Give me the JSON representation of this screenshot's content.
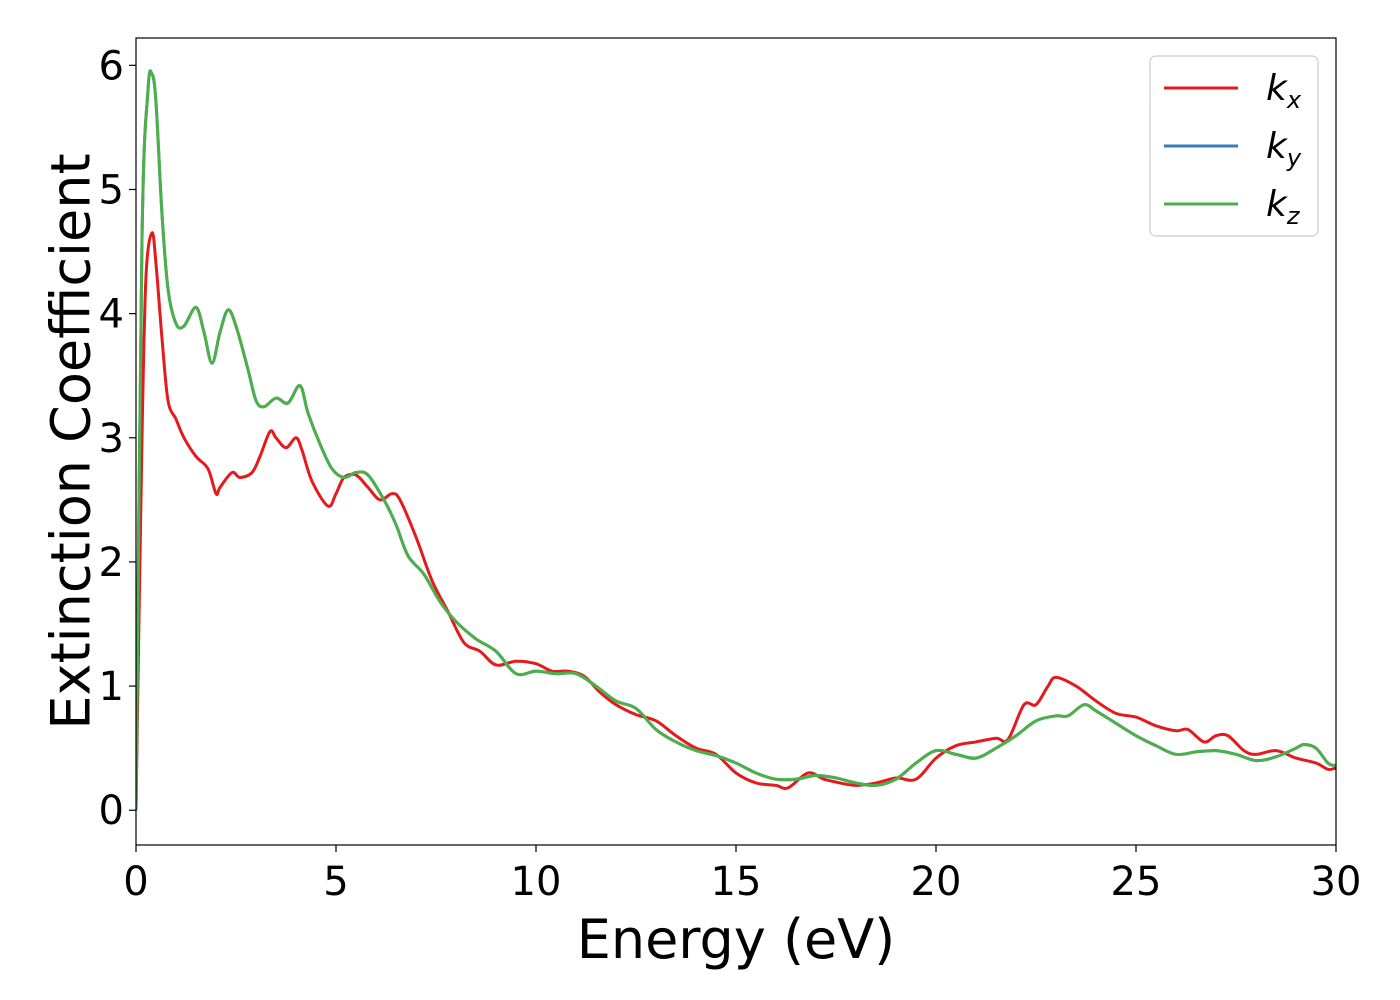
{
  "chart_data": {
    "type": "line",
    "title": "",
    "xlabel": "Energy (eV)",
    "ylabel": "Extinction Coefficient",
    "xlim": [
      0,
      30
    ],
    "ylim": [
      -0.28,
      6.22
    ],
    "xticks": [
      0,
      5,
      10,
      15,
      20,
      25,
      30
    ],
    "yticks": [
      0,
      1,
      2,
      3,
      4,
      5,
      6
    ],
    "grid": false,
    "legend_position": "top-right",
    "series": [
      {
        "name": "kx",
        "symbol": "k",
        "subscript": "x",
        "color": "#e41a1c",
        "x": [
          0,
          0.15,
          0.25,
          0.4,
          0.5,
          0.65,
          0.8,
          1.0,
          1.2,
          1.5,
          1.8,
          2.0,
          2.1,
          2.4,
          2.6,
          2.9,
          3.1,
          3.35,
          3.5,
          3.75,
          4.0,
          4.15,
          4.4,
          4.8,
          5.0,
          5.2,
          5.5,
          5.8,
          6.1,
          6.4,
          6.6,
          7.0,
          7.4,
          7.8,
          8.2,
          8.6,
          9.0,
          9.5,
          10.0,
          10.4,
          10.8,
          11.2,
          11.6,
          12.0,
          12.5,
          13.0,
          13.5,
          14.0,
          14.5,
          15.0,
          15.5,
          16.0,
          16.3,
          16.8,
          17.2,
          17.6,
          18.0,
          18.5,
          19.0,
          19.5,
          20.0,
          20.5,
          21.0,
          21.5,
          21.8,
          22.2,
          22.5,
          22.8,
          23.0,
          23.5,
          24.0,
          24.5,
          25.0,
          25.5,
          26.0,
          26.3,
          26.7,
          27.0,
          27.3,
          27.7,
          28.0,
          28.5,
          29.0,
          29.5,
          29.8,
          30.0
        ],
        "y": [
          0,
          3.0,
          4.3,
          4.65,
          4.4,
          3.8,
          3.3,
          3.15,
          3.0,
          2.85,
          2.75,
          2.55,
          2.6,
          2.72,
          2.68,
          2.72,
          2.85,
          3.05,
          3.0,
          2.92,
          3.0,
          2.9,
          2.65,
          2.45,
          2.55,
          2.68,
          2.7,
          2.6,
          2.5,
          2.55,
          2.5,
          2.2,
          1.85,
          1.6,
          1.35,
          1.28,
          1.17,
          1.2,
          1.18,
          1.12,
          1.12,
          1.08,
          0.95,
          0.85,
          0.77,
          0.72,
          0.6,
          0.5,
          0.45,
          0.3,
          0.22,
          0.2,
          0.18,
          0.3,
          0.25,
          0.22,
          0.2,
          0.22,
          0.26,
          0.25,
          0.42,
          0.52,
          0.55,
          0.58,
          0.57,
          0.85,
          0.85,
          1.0,
          1.07,
          1.0,
          0.88,
          0.78,
          0.75,
          0.68,
          0.64,
          0.65,
          0.55,
          0.6,
          0.6,
          0.48,
          0.45,
          0.48,
          0.42,
          0.38,
          0.33,
          0.34
        ]
      },
      {
        "name": "ky",
        "symbol": "k",
        "subscript": "y",
        "color": "#377eb8",
        "x": [
          0,
          0.15,
          0.3,
          0.4,
          0.5,
          0.65,
          0.8,
          1.0,
          1.2,
          1.5,
          1.7,
          1.9,
          2.1,
          2.3,
          2.5,
          2.8,
          3.0,
          3.2,
          3.5,
          3.8,
          4.1,
          4.3,
          4.6,
          4.9,
          5.2,
          5.5,
          5.8,
          6.2,
          6.5,
          6.8,
          7.2,
          7.6,
          8.0,
          8.5,
          9.0,
          9.5,
          10.0,
          10.5,
          11.0,
          11.5,
          12.0,
          12.5,
          13.0,
          13.5,
          14.0,
          14.5,
          15.0,
          15.5,
          16.0,
          16.5,
          17.0,
          17.5,
          18.0,
          18.5,
          19.0,
          19.5,
          20.0,
          20.5,
          21.0,
          21.5,
          22.0,
          22.5,
          23.0,
          23.3,
          23.7,
          24.0,
          24.5,
          25.0,
          25.5,
          26.0,
          26.5,
          27.0,
          27.5,
          28.0,
          28.5,
          29.0,
          29.2,
          29.5,
          29.8,
          30.0
        ],
        "y": [
          0,
          4.6,
          5.8,
          5.93,
          5.7,
          4.8,
          4.2,
          3.92,
          3.9,
          4.05,
          3.85,
          3.6,
          3.85,
          4.03,
          3.9,
          3.55,
          3.3,
          3.25,
          3.32,
          3.28,
          3.42,
          3.2,
          2.95,
          2.75,
          2.68,
          2.72,
          2.7,
          2.5,
          2.3,
          2.05,
          1.9,
          1.68,
          1.52,
          1.38,
          1.28,
          1.1,
          1.12,
          1.1,
          1.1,
          1.0,
          0.88,
          0.82,
          0.65,
          0.55,
          0.48,
          0.44,
          0.38,
          0.3,
          0.25,
          0.25,
          0.28,
          0.26,
          0.22,
          0.2,
          0.25,
          0.38,
          0.48,
          0.45,
          0.42,
          0.5,
          0.6,
          0.72,
          0.76,
          0.76,
          0.85,
          0.8,
          0.7,
          0.6,
          0.52,
          0.45,
          0.47,
          0.48,
          0.45,
          0.4,
          0.43,
          0.5,
          0.53,
          0.5,
          0.38,
          0.36
        ]
      },
      {
        "name": "kz",
        "symbol": "k",
        "subscript": "z",
        "color": "#4daf4a",
        "x": [
          0,
          0.15,
          0.3,
          0.4,
          0.5,
          0.65,
          0.8,
          1.0,
          1.2,
          1.5,
          1.7,
          1.9,
          2.1,
          2.3,
          2.5,
          2.8,
          3.0,
          3.2,
          3.5,
          3.8,
          4.1,
          4.3,
          4.6,
          4.9,
          5.2,
          5.5,
          5.8,
          6.2,
          6.5,
          6.8,
          7.2,
          7.6,
          8.0,
          8.5,
          9.0,
          9.5,
          10.0,
          10.5,
          11.0,
          11.5,
          12.0,
          12.5,
          13.0,
          13.5,
          14.0,
          14.5,
          15.0,
          15.5,
          16.0,
          16.5,
          17.0,
          17.5,
          18.0,
          18.5,
          19.0,
          19.5,
          20.0,
          20.5,
          21.0,
          21.5,
          22.0,
          22.5,
          23.0,
          23.3,
          23.7,
          24.0,
          24.5,
          25.0,
          25.5,
          26.0,
          26.5,
          27.0,
          27.5,
          28.0,
          28.5,
          29.0,
          29.2,
          29.5,
          29.8,
          30.0
        ],
        "y": [
          0,
          4.6,
          5.8,
          5.93,
          5.7,
          4.8,
          4.2,
          3.92,
          3.9,
          4.05,
          3.85,
          3.6,
          3.85,
          4.03,
          3.9,
          3.55,
          3.3,
          3.25,
          3.32,
          3.28,
          3.42,
          3.2,
          2.95,
          2.75,
          2.68,
          2.72,
          2.7,
          2.5,
          2.3,
          2.05,
          1.9,
          1.68,
          1.52,
          1.38,
          1.28,
          1.1,
          1.12,
          1.1,
          1.1,
          1.0,
          0.88,
          0.82,
          0.65,
          0.55,
          0.48,
          0.44,
          0.38,
          0.3,
          0.25,
          0.25,
          0.28,
          0.26,
          0.22,
          0.2,
          0.25,
          0.38,
          0.48,
          0.45,
          0.42,
          0.5,
          0.6,
          0.72,
          0.76,
          0.76,
          0.85,
          0.8,
          0.7,
          0.6,
          0.52,
          0.45,
          0.47,
          0.48,
          0.45,
          0.4,
          0.43,
          0.5,
          0.53,
          0.5,
          0.38,
          0.36
        ]
      }
    ]
  }
}
